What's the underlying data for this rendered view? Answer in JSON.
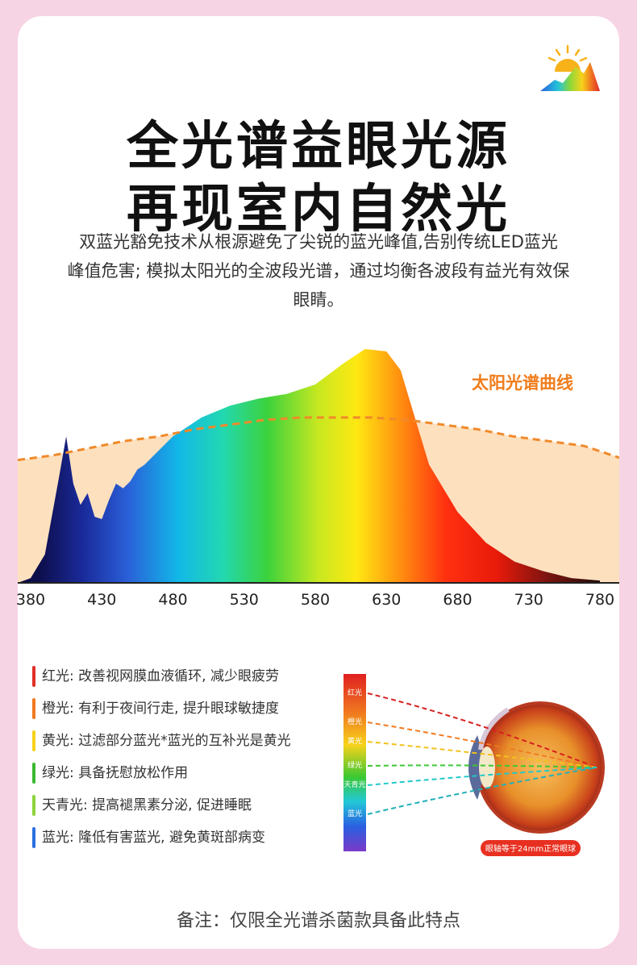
{
  "title_line1": "全光谱益眼光源",
  "title_line2": "再现室内自然光",
  "desc_line1": "双蓝光豁免技术从根源避免了尖锐的蓝光峰值,告别传统LED蓝光",
  "desc_line2": "峰值危害; 模拟太阳光的全波段光谱，通过均衡各波段有益光有效保",
  "desc_line3": "眼睛。",
  "chart_data": {
    "type": "area",
    "curve_label": "太阳光谱曲线",
    "ticks": [
      "380",
      "430",
      "480",
      "530",
      "580",
      "630",
      "680",
      "730",
      "780"
    ],
    "x": [
      380,
      390,
      400,
      405,
      410,
      415,
      420,
      425,
      430,
      435,
      440,
      445,
      450,
      455,
      460,
      470,
      480,
      490,
      500,
      520,
      540,
      560,
      580,
      600,
      615,
      630,
      640,
      650,
      660,
      680,
      700,
      720,
      740,
      760,
      780
    ],
    "y": [
      0.02,
      0.12,
      0.45,
      0.62,
      0.42,
      0.33,
      0.38,
      0.28,
      0.27,
      0.35,
      0.42,
      0.4,
      0.43,
      0.48,
      0.5,
      0.56,
      0.62,
      0.66,
      0.7,
      0.75,
      0.78,
      0.8,
      0.84,
      0.93,
      0.99,
      0.98,
      0.9,
      0.7,
      0.5,
      0.3,
      0.17,
      0.09,
      0.05,
      0.02,
      0.01
    ],
    "sun_curve_y": [
      0.52,
      0.54,
      0.57,
      0.6,
      0.62,
      0.65,
      0.67,
      0.69,
      0.7,
      0.7,
      0.7,
      0.69,
      0.67,
      0.65,
      0.62,
      0.6,
      0.58,
      0.53
    ],
    "colors": {
      "fill_bg": "#fde0be",
      "dashed": "#f08a2a",
      "label": "#f07d1c"
    }
  },
  "legend": [
    {
      "label": "红光: 改善视网膜血液循环, 减少眼疲劳",
      "color": "#e03028"
    },
    {
      "label": "橙光: 有利于夜间行走, 提升眼球敏捷度",
      "color": "#f07a20"
    },
    {
      "label": "黄光: 过滤部分蓝光*蓝光的互补光是黄光",
      "color": "#f7d21a"
    },
    {
      "label": "绿光: 具备抚慰放松作用",
      "color": "#3cb832"
    },
    {
      "label": "天青光: 提高褪黑素分泌, 促进睡眠",
      "color": "#8ed43a"
    },
    {
      "label": "蓝光: 隆低有害蓝光, 避免黄斑部病变",
      "color": "#2a6fe0"
    }
  ],
  "eye": {
    "bands": [
      "红光",
      "橙光",
      "黄光",
      "绿光",
      "天青光",
      "蓝光"
    ],
    "caption": "眼轴等于24mm正常眼球"
  },
  "note": "备注：仅限全光谱杀菌款具备此特点"
}
